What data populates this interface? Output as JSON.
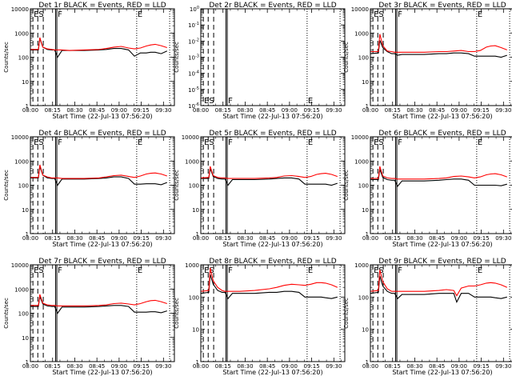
{
  "figure": {
    "xlabel": "Start Time (22-Jul-13 07:56:20)",
    "ylabel": "Counts/sec",
    "x_tick_labels": [
      "08:00",
      "08:15",
      "08:30",
      "08:45",
      "09:00",
      "09:15",
      "09:30"
    ],
    "y_tick_labels_main": [
      "1",
      "10",
      "100",
      "1000",
      "10000"
    ],
    "y_tick_labels_det2": [
      "10^-6",
      "10^-5",
      "10^-4",
      "10^-3",
      "10^-2",
      "10^-1",
      "10^0"
    ],
    "colors": {
      "events": "#000000",
      "lld": "#ff0000",
      "axes": "#000000"
    },
    "marker_labels": [
      "E",
      "S",
      "F",
      "E"
    ]
  },
  "chart_data": [
    {
      "type": "line",
      "title": "Det 1r BLACK = Events, RED = LLD",
      "yscale": "log",
      "ylim": [
        1,
        10000
      ],
      "x_minutes_since_start": [
        3.6,
        9,
        10,
        12,
        15,
        18,
        20,
        22,
        25,
        30,
        40,
        50,
        55,
        60,
        65,
        70,
        74,
        78,
        82,
        85,
        88,
        92,
        96
      ],
      "series": [
        {
          "name": "Events",
          "values": [
            200,
            200,
            600,
            260,
            210,
            200,
            200,
            100,
            190,
            190,
            190,
            200,
            210,
            230,
            230,
            200,
            110,
            150,
            150,
            160,
            160,
            140,
            180
          ]
        },
        {
          "name": "LLD",
          "values": [
            210,
            210,
            650,
            260,
            220,
            210,
            200,
            200,
            200,
            190,
            200,
            210,
            230,
            260,
            280,
            240,
            220,
            240,
            290,
            320,
            340,
            300,
            250
          ]
        }
      ],
      "markers": {
        "dashed_min": [
          5.3,
          8.6,
          12.3
        ],
        "solid_min": [
          20.6,
          21.5
        ],
        "dotted_min": [
          75.5,
          97.8
        ]
      }
    },
    {
      "type": "line",
      "title": "Det 2r BLACK = Events, RED = LLD",
      "yscale": "log",
      "ylim": [
        1e-06,
        1
      ],
      "x_minutes_since_start": [],
      "series": [],
      "markers": {
        "dashed_min": [
          5.3,
          8.6,
          12.3
        ],
        "solid_min": [
          20.6,
          21.5
        ],
        "dotted_min": [
          75.5,
          97.8
        ]
      }
    },
    {
      "type": "line",
      "title": "Det 3r BLACK = Events, RED = LLD",
      "yscale": "log",
      "ylim": [
        1,
        10000
      ],
      "x_minutes_since_start": [
        3.6,
        9,
        10,
        12,
        15,
        18,
        20,
        22,
        25,
        30,
        40,
        50,
        55,
        60,
        65,
        70,
        74,
        78,
        82,
        85,
        88,
        92,
        96
      ],
      "series": [
        {
          "name": "Events",
          "values": [
            140,
            150,
            500,
            250,
            170,
            140,
            140,
            120,
            130,
            130,
            130,
            140,
            140,
            150,
            150,
            140,
            110,
            110,
            110,
            110,
            110,
            100,
            120
          ]
        },
        {
          "name": "LLD",
          "values": [
            170,
            170,
            900,
            300,
            180,
            170,
            160,
            160,
            160,
            160,
            160,
            170,
            170,
            180,
            190,
            170,
            170,
            190,
            260,
            290,
            300,
            250,
            200
          ]
        }
      ],
      "markers": {
        "dashed_min": [
          5.3,
          8.6,
          12.3
        ],
        "solid_min": [
          20.6,
          21.5
        ],
        "dotted_min": [
          75.5,
          97.8
        ]
      }
    },
    {
      "type": "line",
      "title": "Det 4r BLACK = Events, RED = LLD",
      "yscale": "log",
      "ylim": [
        1,
        10000
      ],
      "x_minutes_since_start": [
        3.6,
        9,
        10,
        12,
        15,
        18,
        20,
        22,
        25,
        30,
        40,
        50,
        55,
        60,
        65,
        70,
        74,
        78,
        82,
        85,
        88,
        92,
        96
      ],
      "series": [
        {
          "name": "Events",
          "values": [
            200,
            200,
            600,
            260,
            200,
            190,
            190,
            100,
            180,
            180,
            180,
            190,
            200,
            220,
            220,
            190,
            110,
            110,
            115,
            115,
            115,
            105,
            130
          ]
        },
        {
          "name": "LLD",
          "values": [
            210,
            210,
            700,
            260,
            220,
            200,
            200,
            200,
            190,
            190,
            190,
            200,
            220,
            250,
            260,
            230,
            210,
            240,
            290,
            310,
            320,
            290,
            240
          ]
        }
      ],
      "markers": {
        "dashed_min": [
          5.3,
          8.6,
          12.3
        ],
        "solid_min": [
          20.6,
          21.5
        ],
        "dotted_min": [
          75.5,
          97.8
        ]
      }
    },
    {
      "type": "line",
      "title": "Det 5r BLACK = Events, RED = LLD",
      "yscale": "log",
      "ylim": [
        1,
        10000
      ],
      "x_minutes_since_start": [
        3.6,
        9,
        10,
        12,
        15,
        18,
        20,
        22,
        25,
        30,
        40,
        50,
        55,
        60,
        65,
        70,
        74,
        78,
        82,
        85,
        88,
        92,
        96
      ],
      "series": [
        {
          "name": "Events",
          "values": [
            190,
            190,
            500,
            230,
            190,
            180,
            180,
            100,
            170,
            170,
            170,
            180,
            190,
            200,
            200,
            180,
            110,
            110,
            110,
            110,
            110,
            100,
            120
          ]
        },
        {
          "name": "LLD",
          "values": [
            200,
            210,
            600,
            250,
            210,
            200,
            200,
            190,
            190,
            190,
            190,
            200,
            210,
            240,
            250,
            230,
            210,
            230,
            280,
            300,
            310,
            280,
            230
          ]
        }
      ],
      "markers": {
        "dashed_min": [
          5.3,
          8.6,
          12.3
        ],
        "solid_min": [
          20.6,
          21.5
        ],
        "dotted_min": [
          75.5,
          97.8
        ]
      }
    },
    {
      "type": "line",
      "title": "Det 6r BLACK = Events, RED = LLD",
      "yscale": "log",
      "ylim": [
        1,
        10000
      ],
      "x_minutes_since_start": [
        3.6,
        9,
        10,
        12,
        15,
        18,
        20,
        22,
        25,
        30,
        40,
        50,
        55,
        60,
        65,
        70,
        74,
        78,
        82,
        85,
        88,
        92,
        96
      ],
      "series": [
        {
          "name": "Events",
          "values": [
            170,
            170,
            450,
            210,
            170,
            160,
            160,
            90,
            150,
            150,
            150,
            160,
            170,
            180,
            180,
            160,
            100,
            100,
            100,
            100,
            100,
            95,
            110
          ]
        },
        {
          "name": "LLD",
          "values": [
            190,
            190,
            600,
            240,
            200,
            190,
            190,
            180,
            180,
            180,
            180,
            190,
            200,
            230,
            240,
            220,
            200,
            220,
            270,
            290,
            300,
            270,
            220
          ]
        }
      ],
      "markers": {
        "dashed_min": [
          5.3,
          8.6,
          12.3
        ],
        "solid_min": [
          20.6,
          21.5
        ],
        "dotted_min": [
          75.5,
          97.8
        ]
      }
    },
    {
      "type": "line",
      "title": "Det 7r BLACK = Events, RED = LLD",
      "yscale": "log",
      "ylim": [
        1,
        10000
      ],
      "x_minutes_since_start": [
        3.6,
        9,
        10,
        12,
        15,
        18,
        20,
        22,
        25,
        30,
        40,
        50,
        55,
        60,
        65,
        70,
        74,
        78,
        82,
        85,
        88,
        92,
        96
      ],
      "series": [
        {
          "name": "Events",
          "values": [
            190,
            190,
            500,
            240,
            200,
            190,
            190,
            100,
            180,
            180,
            180,
            190,
            200,
            210,
            210,
            190,
            110,
            110,
            110,
            115,
            115,
            105,
            125
          ]
        },
        {
          "name": "LLD",
          "values": [
            210,
            210,
            600,
            260,
            220,
            210,
            210,
            200,
            200,
            200,
            200,
            210,
            220,
            250,
            260,
            240,
            220,
            250,
            300,
            330,
            340,
            300,
            250
          ]
        }
      ],
      "markers": {
        "dashed_min": [
          5.3,
          8.6,
          12.3
        ],
        "solid_min": [
          20.6,
          21.5
        ],
        "dotted_min": [
          75.5,
          97.8
        ]
      }
    },
    {
      "type": "line",
      "title": "Det 8r BLACK = Events, RED = LLD",
      "yscale": "log",
      "ylim": [
        1,
        1000
      ],
      "x_minutes_since_start": [
        3.6,
        9,
        10,
        12,
        15,
        18,
        20,
        22,
        25,
        30,
        40,
        50,
        55,
        60,
        65,
        70,
        74,
        78,
        82,
        85,
        88,
        92,
        96
      ],
      "series": [
        {
          "name": "Events",
          "values": [
            130,
            140,
            500,
            250,
            160,
            140,
            140,
            90,
            130,
            130,
            130,
            140,
            140,
            150,
            150,
            140,
            100,
            100,
            100,
            100,
            95,
            90,
            100
          ]
        },
        {
          "name": "LLD",
          "values": [
            150,
            160,
            800,
            320,
            200,
            160,
            150,
            150,
            150,
            150,
            160,
            180,
            200,
            230,
            250,
            240,
            230,
            250,
            280,
            280,
            270,
            240,
            200
          ]
        }
      ],
      "markers": {
        "dashed_min": [
          5.3,
          8.6,
          12.3
        ],
        "solid_min": [
          20.6,
          21.5
        ],
        "dotted_min": [
          75.5,
          97.8
        ]
      }
    },
    {
      "type": "line",
      "title": "Det 9r BLACK = Events, RED = LLD",
      "yscale": "log",
      "ylim": [
        1,
        1000
      ],
      "x_minutes_since_start": [
        3.6,
        9,
        10,
        12,
        15,
        18,
        20,
        22,
        25,
        30,
        40,
        50,
        55,
        60,
        62,
        65,
        70,
        74,
        78,
        82,
        85,
        88,
        92,
        96
      ],
      "series": [
        {
          "name": "Events",
          "values": [
            130,
            140,
            450,
            220,
            150,
            130,
            130,
            90,
            120,
            120,
            120,
            130,
            130,
            130,
            70,
            130,
            130,
            100,
            100,
            100,
            100,
            95,
            90,
            100
          ]
        },
        {
          "name": "LLD",
          "values": [
            150,
            160,
            700,
            300,
            180,
            150,
            150,
            150,
            150,
            150,
            150,
            160,
            170,
            160,
            110,
            190,
            220,
            220,
            240,
            270,
            280,
            270,
            240,
            200
          ]
        }
      ],
      "markers": {
        "dashed_min": [
          5.3,
          8.6,
          12.3
        ],
        "solid_min": [
          20.6,
          21.5
        ],
        "dotted_min": [
          75.5,
          97.8
        ]
      }
    }
  ]
}
